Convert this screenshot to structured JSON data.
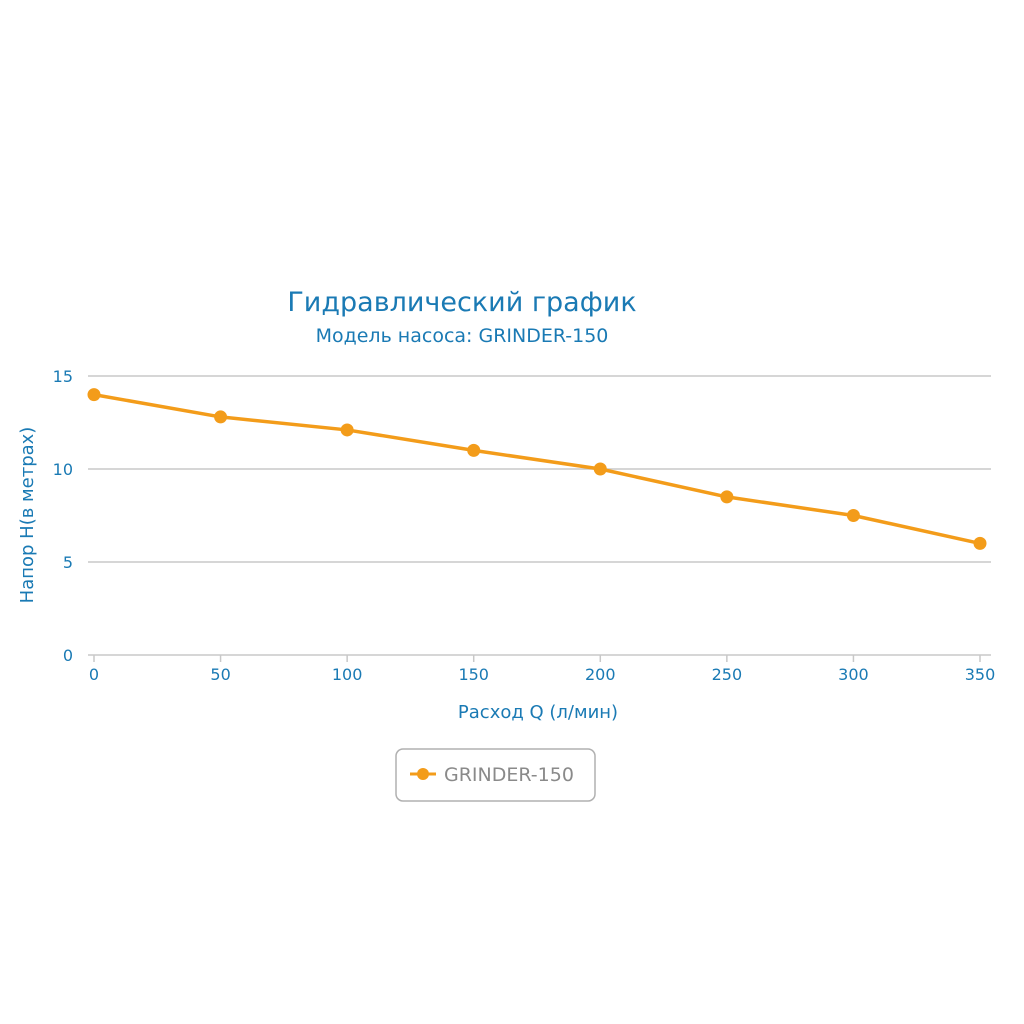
{
  "chart_data": {
    "type": "line",
    "title": "Гидравлический график",
    "subtitle": "Модель насоса: GRINDER-150",
    "xlabel": "Расход Q (л/мин)",
    "ylabel": "Напор H(в метрах)",
    "x": [
      0,
      50,
      100,
      150,
      200,
      250,
      300,
      350
    ],
    "series": [
      {
        "name": "GRINDER-150",
        "values": [
          14,
          12.8,
          12.1,
          11,
          10,
          8.5,
          7.5,
          6
        ],
        "color": "#f39c1a"
      }
    ],
    "xlim": [
      0,
      350
    ],
    "ylim": [
      0,
      15
    ],
    "xticks": [
      0,
      50,
      100,
      150,
      200,
      250,
      300,
      350
    ],
    "yticks": [
      0,
      5,
      10,
      15
    ],
    "grid": true,
    "legend_position": "bottom-center"
  },
  "colors": {
    "text": "#1a7ab4",
    "grid": "#c8c8c8",
    "axis": "#c8c8c8",
    "legend_border": "#b0b0b0",
    "legend_text": "#8a8a8a"
  }
}
